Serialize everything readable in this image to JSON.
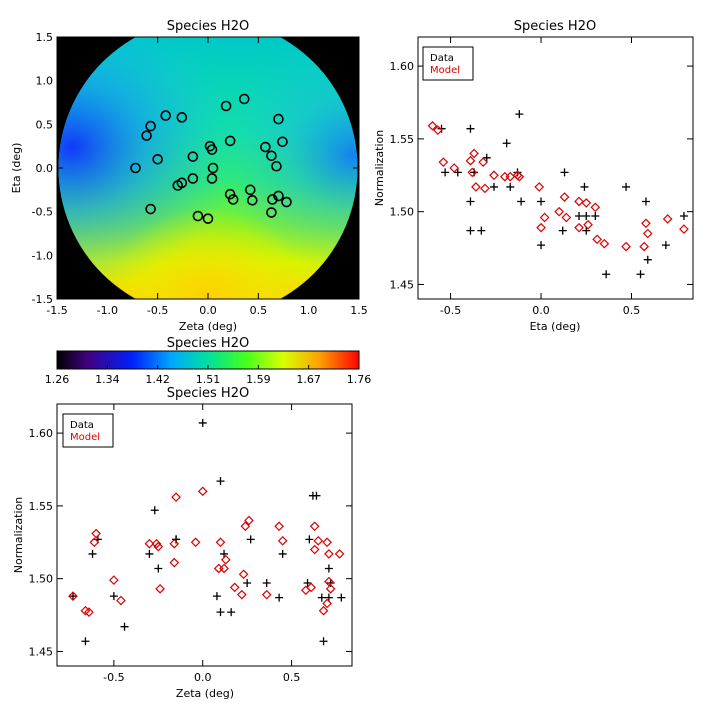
{
  "chart_data": [
    {
      "type": "heatmap",
      "title": "Species H2O",
      "xlabel": "Zeta (deg)",
      "ylabel": "Eta (deg)",
      "xlim": [
        -1.5,
        1.5
      ],
      "ylim": [
        -1.5,
        1.5
      ],
      "xticks": [
        "-1.5",
        "-1.0",
        "-0.5",
        "0.0",
        "0.5",
        "1.0",
        "1.5"
      ],
      "yticks": [
        "-1.5",
        "-1.0",
        "-0.5",
        "0.0",
        "0.5",
        "1.0",
        "1.5"
      ],
      "stations": [
        [
          -0.57,
          0.48
        ],
        [
          -0.61,
          0.37
        ],
        [
          -0.42,
          0.6
        ],
        [
          -0.26,
          0.58
        ],
        [
          -0.72,
          0.0
        ],
        [
          -0.5,
          0.1
        ],
        [
          -0.26,
          -0.17
        ],
        [
          -0.3,
          -0.2
        ],
        [
          -0.57,
          -0.47
        ],
        [
          -0.15,
          0.13
        ],
        [
          -0.15,
          -0.12
        ],
        [
          0.02,
          0.25
        ],
        [
          0.04,
          0.21
        ],
        [
          0.05,
          0.0
        ],
        [
          0.04,
          -0.12
        ],
        [
          0.18,
          0.71
        ],
        [
          0.36,
          0.79
        ],
        [
          0.22,
          0.31
        ],
        [
          -0.1,
          -0.55
        ],
        [
          0.0,
          -0.58
        ],
        [
          0.22,
          -0.3
        ],
        [
          0.25,
          -0.36
        ],
        [
          0.42,
          -0.25
        ],
        [
          0.44,
          -0.37
        ],
        [
          0.57,
          0.24
        ],
        [
          0.63,
          0.14
        ],
        [
          0.7,
          0.56
        ],
        [
          0.74,
          0.3
        ],
        [
          0.64,
          -0.36
        ],
        [
          0.63,
          -0.51
        ],
        [
          0.7,
          -0.32
        ],
        [
          0.78,
          -0.39
        ],
        [
          0.68,
          0.02
        ]
      ],
      "colorbar": {
        "title": "Species H2O",
        "range": [
          1.26,
          1.76
        ],
        "ticks": [
          "1.26",
          "1.34",
          "1.42",
          "1.51",
          "1.59",
          "1.67",
          "1.76"
        ]
      }
    },
    {
      "type": "scatter",
      "title": "Species H2O",
      "xlabel": "Eta (deg)",
      "ylabel": "Normalization",
      "xlim": [
        -0.68,
        0.84
      ],
      "ylim": [
        1.44,
        1.62
      ],
      "xticks": [
        "-0.5",
        "0.0",
        "0.5"
      ],
      "yticks": [
        "1.45",
        "1.50",
        "1.55",
        "1.60"
      ],
      "legend": {
        "position": "top-left",
        "entries": [
          "Data",
          "Model"
        ]
      },
      "series": [
        {
          "name": "Data",
          "marker": "plus",
          "color": "#000000",
          "points": [
            [
              -0.55,
              1.557
            ],
            [
              -0.53,
              1.527
            ],
            [
              -0.46,
              1.527
            ],
            [
              -0.39,
              1.557
            ],
            [
              -0.39,
              1.507
            ],
            [
              -0.39,
              1.487
            ],
            [
              -0.37,
              1.527
            ],
            [
              -0.33,
              1.487
            ],
            [
              -0.3,
              1.537
            ],
            [
              -0.26,
              1.517
            ],
            [
              -0.19,
              1.547
            ],
            [
              -0.17,
              1.517
            ],
            [
              -0.13,
              1.527
            ],
            [
              -0.12,
              1.567
            ],
            [
              -0.11,
              1.507
            ],
            [
              0.0,
              1.507
            ],
            [
              0.0,
              1.477
            ],
            [
              0.13,
              1.527
            ],
            [
              0.12,
              1.487
            ],
            [
              0.21,
              1.497
            ],
            [
              0.25,
              1.497
            ],
            [
              0.25,
              1.487
            ],
            [
              0.24,
              1.517
            ],
            [
              0.3,
              1.497
            ],
            [
              0.36,
              1.457
            ],
            [
              0.47,
              1.517
            ],
            [
              0.55,
              1.457
            ],
            [
              0.59,
              1.467
            ],
            [
              0.58,
              1.507
            ],
            [
              0.69,
              1.477
            ],
            [
              0.79,
              1.497
            ]
          ]
        },
        {
          "name": "Model",
          "marker": "diamond",
          "color": "#dd0000",
          "points": [
            [
              -0.6,
              1.559
            ],
            [
              -0.57,
              1.556
            ],
            [
              -0.54,
              1.534
            ],
            [
              -0.48,
              1.53
            ],
            [
              -0.37,
              1.54
            ],
            [
              -0.39,
              1.535
            ],
            [
              -0.38,
              1.527
            ],
            [
              -0.32,
              1.534
            ],
            [
              -0.36,
              1.517
            ],
            [
              -0.31,
              1.516
            ],
            [
              -0.26,
              1.525
            ],
            [
              -0.2,
              1.524
            ],
            [
              -0.17,
              1.524
            ],
            [
              -0.13,
              1.525
            ],
            [
              -0.12,
              1.524
            ],
            [
              -0.01,
              1.517
            ],
            [
              0.0,
              1.489
            ],
            [
              0.02,
              1.496
            ],
            [
              0.1,
              1.5
            ],
            [
              0.13,
              1.51
            ],
            [
              0.14,
              1.496
            ],
            [
              0.21,
              1.507
            ],
            [
              0.21,
              1.489
            ],
            [
              0.25,
              1.506
            ],
            [
              0.26,
              1.491
            ],
            [
              0.3,
              1.503
            ],
            [
              0.31,
              1.481
            ],
            [
              0.35,
              1.478
            ],
            [
              0.47,
              1.476
            ],
            [
              0.57,
              1.476
            ],
            [
              0.58,
              1.492
            ],
            [
              0.59,
              1.485
            ],
            [
              0.7,
              1.495
            ],
            [
              0.79,
              1.488
            ]
          ]
        }
      ]
    },
    {
      "type": "scatter",
      "title": "Species H2O",
      "xlabel": "Zeta (deg)",
      "ylabel": "Normalization",
      "xlim": [
        -0.82,
        0.84
      ],
      "ylim": [
        1.44,
        1.62
      ],
      "xticks": [
        "-0.5",
        "0.0",
        "0.5"
      ],
      "yticks": [
        "1.45",
        "1.50",
        "1.55",
        "1.60"
      ],
      "legend": {
        "position": "top-left",
        "entries": [
          "Data",
          "Model"
        ]
      },
      "series": [
        {
          "name": "Data",
          "marker": "plus",
          "color": "#000000",
          "points": [
            [
              -0.73,
              1.488
            ],
            [
              -0.66,
              1.457
            ],
            [
              -0.62,
              1.517
            ],
            [
              -0.59,
              1.527
            ],
            [
              -0.5,
              1.488
            ],
            [
              -0.44,
              1.467
            ],
            [
              -0.3,
              1.517
            ],
            [
              -0.27,
              1.547
            ],
            [
              -0.25,
              1.507
            ],
            [
              -0.15,
              1.527
            ],
            [
              -0.15,
              1.527
            ],
            [
              0.0,
              1.607
            ],
            [
              0.08,
              1.488
            ],
            [
              0.1,
              1.567
            ],
            [
              0.1,
              1.477
            ],
            [
              0.12,
              1.517
            ],
            [
              0.16,
              1.477
            ],
            [
              0.25,
              1.497
            ],
            [
              0.27,
              1.527
            ],
            [
              0.36,
              1.497
            ],
            [
              0.43,
              1.487
            ],
            [
              0.45,
              1.517
            ],
            [
              0.59,
              1.497
            ],
            [
              0.62,
              1.557
            ],
            [
              0.64,
              1.557
            ],
            [
              0.6,
              1.527
            ],
            [
              0.68,
              1.457
            ],
            [
              0.67,
              1.487
            ],
            [
              0.71,
              1.507
            ],
            [
              0.71,
              1.487
            ],
            [
              0.78,
              1.487
            ],
            [
              0.72,
              1.497
            ]
          ]
        },
        {
          "name": "Model",
          "marker": "diamond",
          "color": "#dd0000",
          "points": [
            [
              -0.73,
              1.488
            ],
            [
              -0.66,
              1.478
            ],
            [
              -0.64,
              1.477
            ],
            [
              -0.6,
              1.531
            ],
            [
              -0.61,
              1.525
            ],
            [
              -0.5,
              1.499
            ],
            [
              -0.46,
              1.485
            ],
            [
              -0.3,
              1.524
            ],
            [
              -0.26,
              1.524
            ],
            [
              -0.25,
              1.522
            ],
            [
              -0.24,
              1.493
            ],
            [
              -0.16,
              1.511
            ],
            [
              -0.16,
              1.524
            ],
            [
              -0.15,
              1.556
            ],
            [
              -0.04,
              1.525
            ],
            [
              0.0,
              1.56
            ],
            [
              0.09,
              1.507
            ],
            [
              0.1,
              1.525
            ],
            [
              0.12,
              1.507
            ],
            [
              0.13,
              1.513
            ],
            [
              0.18,
              1.494
            ],
            [
              0.22,
              1.489
            ],
            [
              0.23,
              1.503
            ],
            [
              0.24,
              1.536
            ],
            [
              0.26,
              1.54
            ],
            [
              0.36,
              1.489
            ],
            [
              0.43,
              1.536
            ],
            [
              0.45,
              1.526
            ],
            [
              0.58,
              1.492
            ],
            [
              0.61,
              1.494
            ],
            [
              0.63,
              1.52
            ],
            [
              0.63,
              1.536
            ],
            [
              0.65,
              1.526
            ],
            [
              0.68,
              1.478
            ],
            [
              0.7,
              1.483
            ],
            [
              0.71,
              1.498
            ],
            [
              0.71,
              1.517
            ],
            [
              0.77,
              1.517
            ],
            [
              0.72,
              1.493
            ],
            [
              0.7,
              1.525
            ]
          ]
        }
      ]
    }
  ]
}
